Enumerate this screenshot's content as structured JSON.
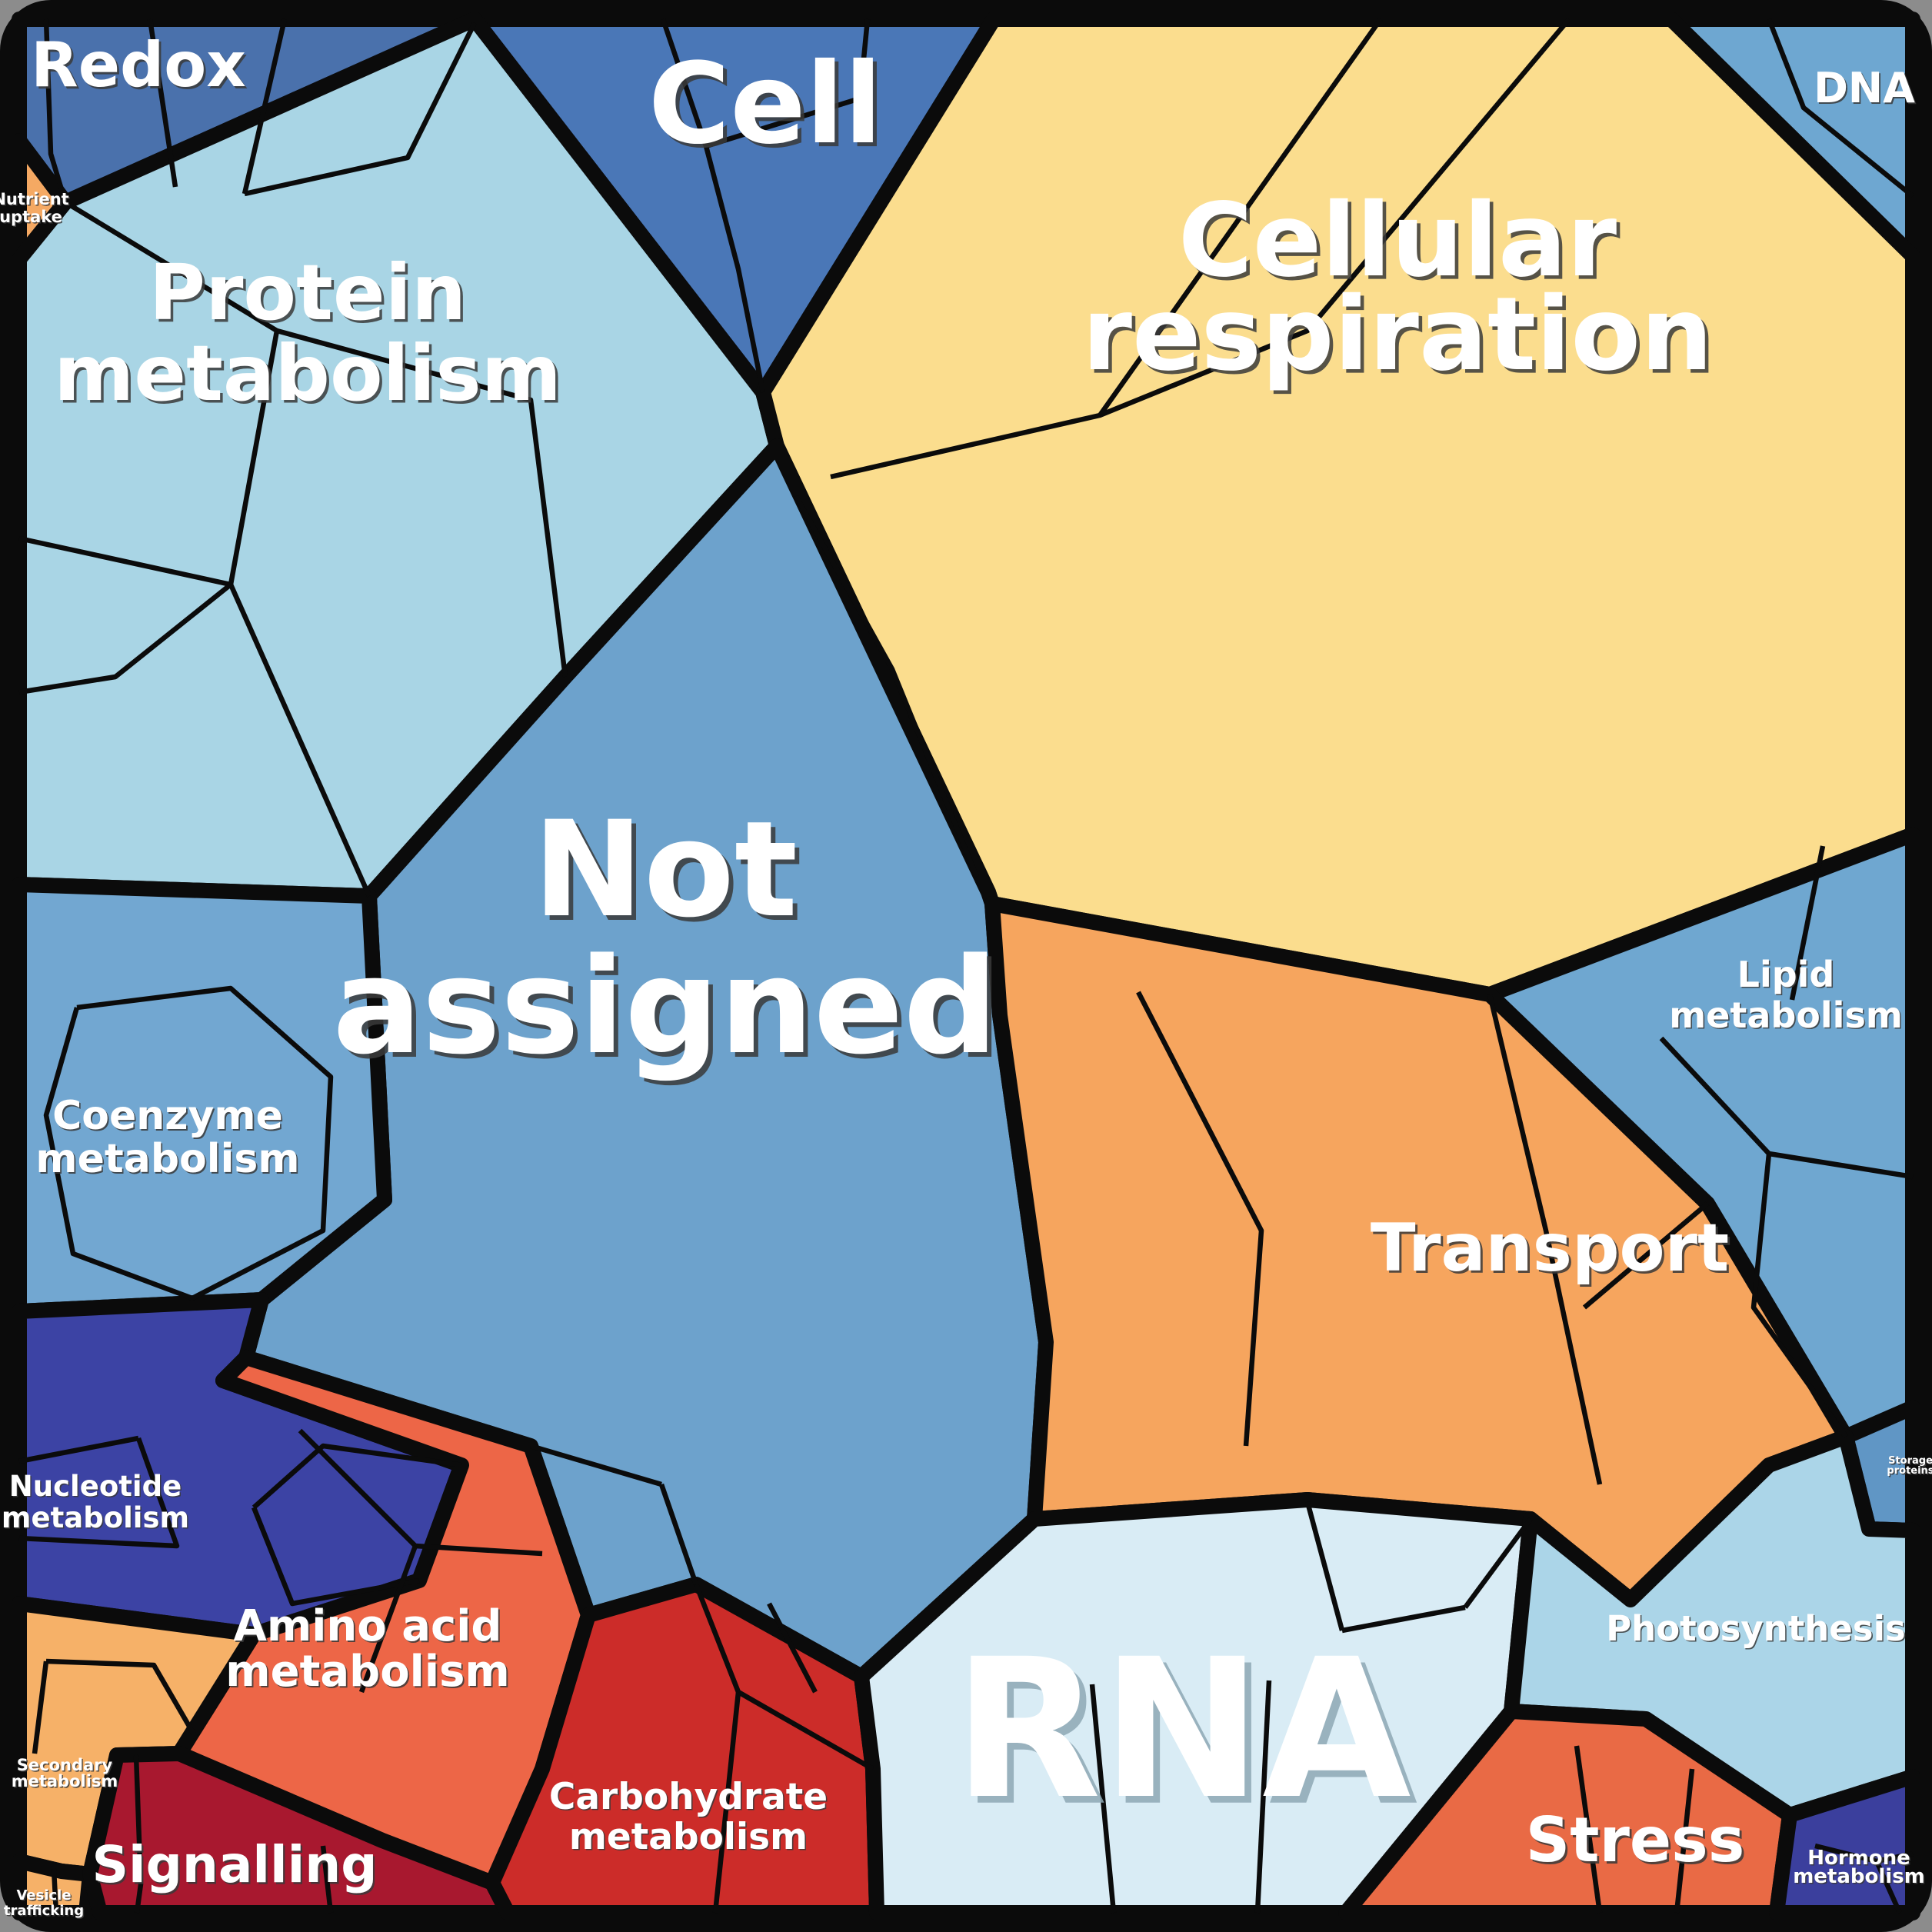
{
  "chart_data": {
    "type": "voronoi_treemap",
    "description": "Polygonal (Voronoi) treemap of functional gene/protein categories; cell area encodes relative abundance",
    "background_color": "#0b0b0b",
    "border_color": "#0b0b0b",
    "label_color": "#ffffff",
    "legend": "none",
    "regions": [
      {
        "id": "redox",
        "label": "Redox",
        "lines": [
          "Redox"
        ],
        "color": "#4a71ac",
        "area_percent": 3.5
      },
      {
        "id": "nutrient",
        "label": "Nutrient uptake",
        "lines": [
          "Nutrient",
          "uptake"
        ],
        "color": "#f5a963",
        "area_percent": 0.2
      },
      {
        "id": "cell",
        "label": "Cell",
        "lines": [
          "Cell"
        ],
        "color": "#4a77b7",
        "area_percent": 3.5
      },
      {
        "id": "dna",
        "label": "DNA",
        "lines": [
          "DNA"
        ],
        "color": "#6ea7d1",
        "area_percent": 1.6
      },
      {
        "id": "protein",
        "label": "Protein metabolism",
        "lines": [
          "Protein",
          "metabolism"
        ],
        "color": "#a9d5e5",
        "area_percent": 11.5
      },
      {
        "id": "cellresp",
        "label": "Cellular respiration",
        "lines": [
          "Cellular",
          "respiration"
        ],
        "color": "#fbdd8e",
        "area_percent": 16.5
      },
      {
        "id": "notassigned",
        "label": "Not assigned",
        "lines": [
          "Not",
          "assigned"
        ],
        "color": "#6da2cc",
        "area_percent": 17.5
      },
      {
        "id": "coenzyme",
        "label": "Coenzyme metabolism",
        "lines": [
          "Coenzyme",
          "metabolism"
        ],
        "color": "#72a7d1",
        "area_percent": 4.5
      },
      {
        "id": "lipid",
        "label": "Lipid metabolism",
        "lines": [
          "Lipid",
          "metabolism"
        ],
        "color": "#6fa7d0",
        "area_percent": 4.5
      },
      {
        "id": "transport",
        "label": "Transport",
        "lines": [
          "Transport"
        ],
        "color": "#f6a55e",
        "area_percent": 7.0
      },
      {
        "id": "storage",
        "label": "Storage proteins",
        "lines": [
          "Storage",
          "proteins"
        ],
        "color": "#6096c5",
        "area_percent": 0.25
      },
      {
        "id": "nucleotide",
        "label": "Nucleotide metabolism",
        "lines": [
          "Nucleotide",
          "metabolism"
        ],
        "color": "#3c43a4",
        "area_percent": 2.2
      },
      {
        "id": "amino",
        "label": "Amino acid metabolism",
        "lines": [
          "Amino acid",
          "metabolism"
        ],
        "color": "#ed6647",
        "area_percent": 4.5
      },
      {
        "id": "secondary",
        "label": "Secondary metabolism",
        "lines": [
          "Secondary",
          "metabolism"
        ],
        "color": "#f6b168",
        "area_percent": 1.4
      },
      {
        "id": "vesicle",
        "label": "Vesicle trafficking",
        "lines": [
          "Vesicle",
          "trafficking"
        ],
        "color": "#f6b168",
        "area_percent": 0.6
      },
      {
        "id": "signalling",
        "label": "Signalling",
        "lines": [
          "Signalling"
        ],
        "color": "#a8182f",
        "area_percent": 3.0
      },
      {
        "id": "carb",
        "label": "Carbohydrate metabolism",
        "lines": [
          "Carbohydrate",
          "metabolism"
        ],
        "color": "#cc2c29",
        "area_percent": 3.0
      },
      {
        "id": "rna",
        "label": "RNA",
        "lines": [
          "RNA"
        ],
        "color": "#d9ecf5",
        "area_percent": 7.5
      },
      {
        "id": "photo",
        "label": "Photosynthesis",
        "lines": [
          "Photosynthesis"
        ],
        "color": "#abd5e8",
        "area_percent": 2.2
      },
      {
        "id": "stress",
        "label": "Stress",
        "lines": [
          "Stress"
        ],
        "color": "#e96a45",
        "area_percent": 2.8
      },
      {
        "id": "hormone",
        "label": "Hormone metabolism",
        "lines": [
          "Hormone",
          "metabolism"
        ],
        "color": "#3b3f9d",
        "area_percent": 1.0
      }
    ]
  }
}
